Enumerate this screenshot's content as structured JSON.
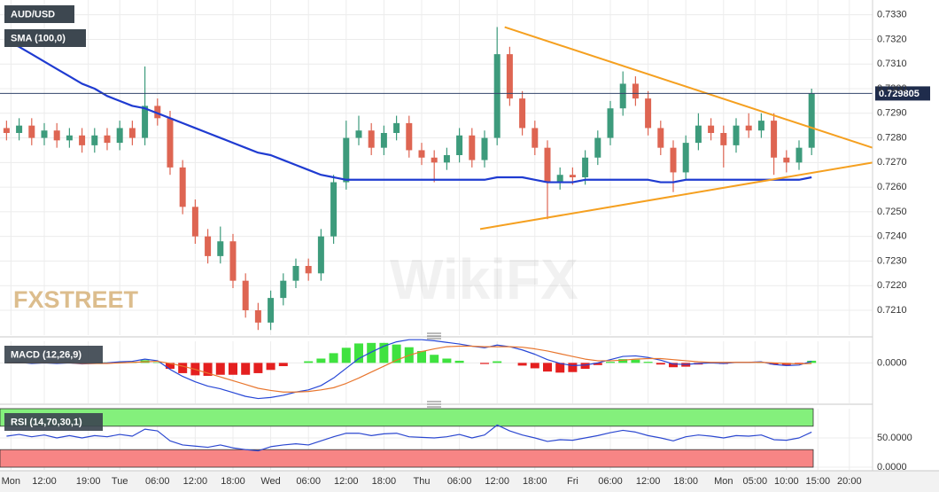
{
  "watermarks": [
    "FXSTREET",
    "WikiFX"
  ],
  "chart_data": [
    {
      "type": "candlestick",
      "title": "AUD/USD",
      "xlim": [
        -7.04,
        131.69
      ],
      "x": [
        -6,
        -4,
        -2,
        0,
        2,
        4,
        6,
        8,
        10,
        12,
        14,
        16,
        18,
        20,
        22,
        24,
        26,
        28,
        30,
        32,
        34,
        36,
        38,
        40,
        42,
        44,
        46,
        48,
        50,
        52,
        54,
        56,
        58,
        60,
        62,
        64,
        66,
        68,
        70,
        72,
        74,
        76,
        78,
        80,
        82,
        84,
        86,
        88,
        90,
        92,
        94,
        96,
        98,
        100,
        102,
        104,
        106,
        108,
        110,
        112,
        114,
        116,
        118,
        120,
        122
      ],
      "open": [
        0.7284,
        0.7282,
        0.7285,
        0.728,
        0.7283,
        0.7279,
        0.7281,
        0.7277,
        0.7281,
        0.7278,
        0.7284,
        0.728,
        0.7293,
        0.7288,
        0.7268,
        0.7252,
        0.724,
        0.7232,
        0.7238,
        0.7222,
        0.721,
        0.7205,
        0.7215,
        0.7222,
        0.7228,
        0.7225,
        0.724,
        0.7262,
        0.728,
        0.7283,
        0.7276,
        0.7282,
        0.7286,
        0.7275,
        0.7272,
        0.727,
        0.7273,
        0.7281,
        0.7271,
        0.728,
        0.7314,
        0.7296,
        0.7284,
        0.7276,
        0.7262,
        0.7265,
        0.7264,
        0.7272,
        0.728,
        0.7292,
        0.7302,
        0.7296,
        0.7284,
        0.7276,
        0.7266,
        0.7278,
        0.7285,
        0.7282,
        0.7277,
        0.7285,
        0.7283,
        0.7287,
        0.7272,
        0.727,
        0.7276
      ],
      "high": [
        0.7287,
        0.7288,
        0.7288,
        0.7286,
        0.7286,
        0.7284,
        0.7284,
        0.7284,
        0.7284,
        0.7287,
        0.7287,
        0.7309,
        0.7296,
        0.7291,
        0.7271,
        0.7255,
        0.7243,
        0.7244,
        0.7241,
        0.7225,
        0.7213,
        0.7218,
        0.7225,
        0.7231,
        0.7231,
        0.7243,
        0.7265,
        0.7287,
        0.7289,
        0.7286,
        0.7285,
        0.7289,
        0.7289,
        0.7278,
        0.7275,
        0.7276,
        0.7284,
        0.7284,
        0.7283,
        0.7325,
        0.7317,
        0.7299,
        0.7287,
        0.7279,
        0.7268,
        0.7268,
        0.7275,
        0.7283,
        0.7295,
        0.7307,
        0.7305,
        0.7299,
        0.7287,
        0.7279,
        0.7281,
        0.729,
        0.7288,
        0.7285,
        0.7288,
        0.729,
        0.729,
        0.729,
        0.7275,
        0.7279,
        0.73
      ],
      "low": [
        0.7279,
        0.7279,
        0.7277,
        0.7277,
        0.7276,
        0.7276,
        0.7274,
        0.7274,
        0.7275,
        0.7275,
        0.7277,
        0.7277,
        0.7285,
        0.7265,
        0.7249,
        0.7237,
        0.7229,
        0.7229,
        0.7219,
        0.7207,
        0.7202,
        0.7202,
        0.7212,
        0.7219,
        0.7222,
        0.7222,
        0.7237,
        0.7259,
        0.7277,
        0.7273,
        0.7273,
        0.7279,
        0.7272,
        0.7269,
        0.7262,
        0.7267,
        0.727,
        0.7268,
        0.7268,
        0.7277,
        0.7293,
        0.7281,
        0.7273,
        0.7247,
        0.7259,
        0.7261,
        0.7261,
        0.7269,
        0.7277,
        0.7289,
        0.7293,
        0.7281,
        0.7273,
        0.7258,
        0.7263,
        0.7275,
        0.7279,
        0.7268,
        0.7274,
        0.728,
        0.728,
        0.7265,
        0.7266,
        0.7267,
        0.7273
      ],
      "close": [
        0.7282,
        0.7285,
        0.728,
        0.7283,
        0.7279,
        0.7281,
        0.7277,
        0.7281,
        0.7278,
        0.7284,
        0.728,
        0.7293,
        0.7288,
        0.7268,
        0.7252,
        0.724,
        0.7232,
        0.7238,
        0.7222,
        0.721,
        0.7205,
        0.7215,
        0.7222,
        0.7228,
        0.7225,
        0.724,
        0.7262,
        0.728,
        0.7283,
        0.7276,
        0.7282,
        0.7286,
        0.7275,
        0.7272,
        0.727,
        0.7273,
        0.7281,
        0.7271,
        0.728,
        0.7314,
        0.7296,
        0.7284,
        0.7276,
        0.7262,
        0.7265,
        0.7264,
        0.7272,
        0.728,
        0.7292,
        0.7302,
        0.7296,
        0.7284,
        0.7276,
        0.7266,
        0.7278,
        0.7285,
        0.7282,
        0.7277,
        0.7285,
        0.7283,
        0.7287,
        0.7272,
        0.727,
        0.7276,
        0.7298
      ],
      "up_color": "#3d9b7c",
      "down_color": "#de6552",
      "series": [
        {
          "name": "SMA (100,0)",
          "color": "#1f3bd1",
          "values": [
            0.7319,
            0.7317,
            0.7314,
            0.7311,
            0.7308,
            0.7305,
            0.7302,
            0.73,
            0.7297,
            0.7295,
            0.7293,
            0.7292,
            0.729,
            0.7288,
            0.7286,
            0.7284,
            0.7282,
            0.728,
            0.7278,
            0.7276,
            0.7274,
            0.7273,
            0.7271,
            0.7269,
            0.7267,
            0.7265,
            0.7264,
            0.7263,
            0.7263,
            0.7263,
            0.7263,
            0.7263,
            0.7263,
            0.7263,
            0.7263,
            0.7263,
            0.7263,
            0.7263,
            0.7263,
            0.7264,
            0.7264,
            0.7264,
            0.7263,
            0.7262,
            0.7262,
            0.7262,
            0.7263,
            0.7263,
            0.7263,
            0.7263,
            0.7263,
            0.7263,
            0.7262,
            0.7262,
            0.7263,
            0.7263,
            0.7263,
            0.7263,
            0.7263,
            0.7263,
            0.7263,
            0.7263,
            0.7263,
            0.7263,
            0.7264
          ]
        }
      ],
      "trendline_color": "#f5a020",
      "trendlines": [
        {
          "x": [
            73.2,
            131.7
          ],
          "y": [
            0.7325,
            0.7276
          ]
        },
        {
          "x": [
            69.3,
            131.7
          ],
          "y": [
            0.7243,
            0.727
          ]
        }
      ],
      "last_price": 0.729805,
      "ylim": [
        0.7201,
        0.7336
      ],
      "yticks": [
        {
          "value": 0.721,
          "label": "0.7210"
        },
        {
          "value": 0.722,
          "label": "0.7220"
        },
        {
          "value": 0.723,
          "label": "0.7230"
        },
        {
          "value": 0.724,
          "label": "0.7240"
        },
        {
          "value": 0.725,
          "label": "0.7250"
        },
        {
          "value": 0.726,
          "label": "0.7260"
        },
        {
          "value": 0.727,
          "label": "0.7270"
        },
        {
          "value": 0.728,
          "label": "0.7280"
        },
        {
          "value": 0.729,
          "label": "0.7290"
        },
        {
          "value": 0.73,
          "label": "0.7300"
        },
        {
          "value": 0.731,
          "label": "0.7310"
        },
        {
          "value": 0.732,
          "label": "0.7320"
        },
        {
          "value": 0.733,
          "label": "0.7330"
        }
      ],
      "grid": true
    },
    {
      "type": "macd",
      "title": "MACD (12,26,9)",
      "x": [
        -6,
        -4,
        -2,
        0,
        2,
        4,
        6,
        8,
        10,
        12,
        14,
        16,
        18,
        20,
        22,
        24,
        26,
        28,
        30,
        32,
        34,
        36,
        38,
        40,
        42,
        44,
        46,
        48,
        50,
        52,
        54,
        56,
        58,
        60,
        62,
        64,
        66,
        68,
        70,
        72,
        74,
        76,
        78,
        80,
        82,
        84,
        86,
        88,
        90,
        92,
        94,
        96,
        98,
        100,
        102,
        104,
        106,
        108,
        110,
        112,
        114,
        116,
        118,
        120,
        122
      ],
      "series": [
        {
          "color": "#2747d6",
          "values": [
            0,
            1e-05,
            -1e-05,
            0,
            -1e-05,
            0,
            -2e-05,
            -1e-05,
            0,
            2e-05,
            3e-05,
            7e-05,
            4e-05,
            -0.00012,
            -0.00025,
            -0.00035,
            -0.00043,
            -0.00048,
            -0.00055,
            -0.00062,
            -0.00066,
            -0.00064,
            -0.0006,
            -0.00054,
            -0.0005,
            -0.00042,
            -0.00028,
            -0.0001,
            8e-05,
            0.0002,
            0.00031,
            0.00039,
            0.00043,
            0.00043,
            0.00041,
            0.00038,
            0.00035,
            0.00031,
            0.00028,
            0.00033,
            0.0003,
            0.00024,
            0.00016,
            6e-05,
            -1e-05,
            -5e-05,
            -4e-05,
            0,
            6e-05,
            0.00012,
            0.00013,
            0.0001,
            5e-05,
            -2e-05,
            -3e-05,
            -1e-05,
            0,
            -1e-05,
            1e-05,
            1e-05,
            2e-05,
            -3e-05,
            -5e-05,
            -4e-05,
            3e-05
          ]
        },
        {
          "color": "#e8762e",
          "values": [
            0,
            0,
            0,
            0,
            0,
            0,
            -1e-05,
            -1e-05,
            -1e-05,
            0,
            1e-05,
            2e-05,
            3e-05,
            -1e-05,
            -6e-05,
            -0.00012,
            -0.00019,
            -0.00026,
            -0.00033,
            -0.0004,
            -0.00047,
            -0.00051,
            -0.00054,
            -0.00054,
            -0.00053,
            -0.0005,
            -0.00046,
            -0.00038,
            -0.00028,
            -0.00017,
            -6e-05,
            5e-05,
            0.00014,
            0.00021,
            0.00026,
            0.0003,
            0.00031,
            0.00031,
            0.0003,
            0.0003,
            0.0003,
            0.00029,
            0.00026,
            0.00022,
            0.00017,
            0.00012,
            7e-05,
            4e-05,
            4e-05,
            5e-05,
            7e-05,
            8e-05,
            8e-05,
            6e-05,
            4e-05,
            2e-05,
            1e-05,
            1e-05,
            1e-05,
            1e-05,
            1e-05,
            0,
            -1e-05,
            -2e-05,
            -1e-05
          ]
        }
      ],
      "histogram": {
        "up_color": "#3fe23f",
        "down_color": "#e41f1f",
        "values": [
          0,
          1e-05,
          -1e-05,
          0,
          -1e-05,
          0,
          -1e-05,
          0,
          1e-05,
          2e-05,
          2e-05,
          5e-05,
          1e-05,
          -0.00011,
          -0.00019,
          -0.00023,
          -0.00024,
          -0.00022,
          -0.00022,
          -0.00022,
          -0.00019,
          -0.00013,
          -6e-05,
          0,
          3e-05,
          8e-05,
          0.00018,
          0.00028,
          0.00036,
          0.00037,
          0.00037,
          0.00034,
          0.00029,
          0.00022,
          0.00015,
          8e-05,
          4e-05,
          0,
          -2e-05,
          3e-05,
          0,
          -5e-05,
          -0.0001,
          -0.00016,
          -0.00018,
          -0.00017,
          -0.00011,
          -4e-05,
          2e-05,
          7e-05,
          6e-05,
          2e-05,
          -3e-05,
          -8e-05,
          -7e-05,
          -3e-05,
          -1e-05,
          -2e-05,
          0,
          0,
          1e-05,
          -3e-05,
          -4e-05,
          -2e-05,
          4e-05
        ]
      },
      "ylim": [
        -0.0007,
        0.0004
      ],
      "yticks": [
        {
          "value": 0,
          "label": "0.0000"
        }
      ],
      "grid": true
    },
    {
      "type": "line",
      "title": "RSI (14,70,30,1)",
      "x": [
        -6,
        -4,
        -2,
        0,
        2,
        4,
        6,
        8,
        10,
        12,
        14,
        16,
        18,
        20,
        22,
        24,
        26,
        28,
        30,
        32,
        34,
        36,
        38,
        40,
        42,
        44,
        46,
        48,
        50,
        52,
        54,
        56,
        58,
        60,
        62,
        64,
        66,
        68,
        70,
        72,
        74,
        76,
        78,
        80,
        82,
        84,
        86,
        88,
        90,
        92,
        94,
        96,
        98,
        100,
        102,
        104,
        106,
        108,
        110,
        112,
        114,
        116,
        118,
        120,
        122
      ],
      "series": [
        {
          "color": "#2c48d0",
          "values": [
            53,
            56,
            52,
            55,
            50,
            54,
            50,
            54,
            52,
            56,
            53,
            65,
            62,
            45,
            38,
            36,
            34,
            38,
            33,
            30,
            28,
            35,
            38,
            40,
            38,
            45,
            52,
            58,
            58,
            54,
            57,
            58,
            52,
            51,
            50,
            52,
            56,
            50,
            55,
            72,
            62,
            55,
            50,
            44,
            47,
            46,
            50,
            54,
            59,
            63,
            60,
            54,
            50,
            45,
            52,
            55,
            53,
            50,
            54,
            53,
            55,
            47,
            46,
            50,
            60
          ]
        }
      ],
      "bands": [
        {
          "from": 70,
          "to": 100,
          "color": "#84f07c"
        },
        {
          "from": 0,
          "to": 30,
          "color": "#f78585"
        }
      ],
      "ylim": [
        0,
        100
      ],
      "yticks": [
        {
          "value": 0,
          "label": "0.0000"
        },
        {
          "value": 50,
          "label": "50.0000"
        }
      ],
      "xticks": [
        {
          "value": -5.3,
          "label": "Mon"
        },
        {
          "value": 0,
          "label": "12:00"
        },
        {
          "value": 7,
          "label": "19:00"
        },
        {
          "value": 12,
          "label": "Tue"
        },
        {
          "value": 18,
          "label": "06:00"
        },
        {
          "value": 24,
          "label": "12:00"
        },
        {
          "value": 30,
          "label": "18:00"
        },
        {
          "value": 36,
          "label": "Wed"
        },
        {
          "value": 42,
          "label": "06:00"
        },
        {
          "value": 48,
          "label": "12:00"
        },
        {
          "value": 54,
          "label": "18:00"
        },
        {
          "value": 60,
          "label": "Thu"
        },
        {
          "value": 66,
          "label": "06:00"
        },
        {
          "value": 72,
          "label": "12:00"
        },
        {
          "value": 78,
          "label": "18:00"
        },
        {
          "value": 84,
          "label": "Fri"
        },
        {
          "value": 90,
          "label": "06:00"
        },
        {
          "value": 96,
          "label": "12:00"
        },
        {
          "value": 102,
          "label": "18:00"
        },
        {
          "value": 108,
          "label": "Mon"
        },
        {
          "value": 113,
          "label": "05:00"
        },
        {
          "value": 118,
          "label": "10:00"
        },
        {
          "value": 123,
          "label": "15:00"
        },
        {
          "value": 128,
          "label": "20:00"
        }
      ],
      "grid": true
    }
  ]
}
